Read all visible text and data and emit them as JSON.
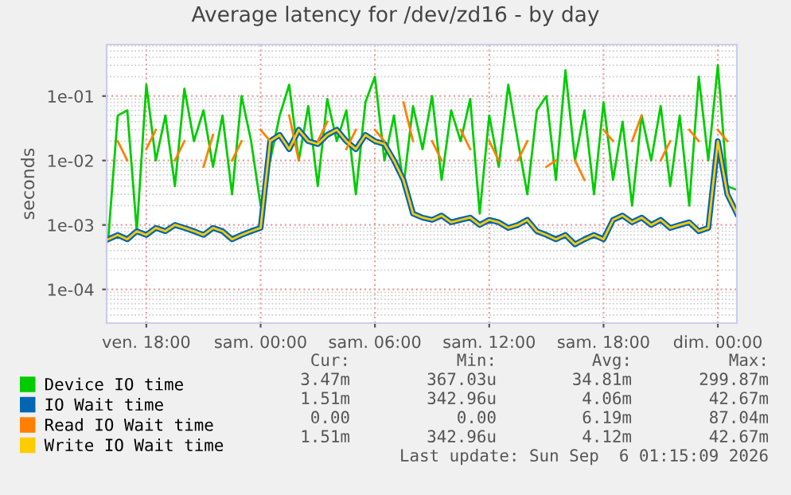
{
  "chart_data": {
    "type": "line",
    "title": "Average latency for /dev/zd16 - by day",
    "ylabel": "seconds",
    "x": [
      "2026-09-04T16:00",
      "2026-09-04T16:30",
      "2026-09-04T17:00",
      "2026-09-04T17:30",
      "2026-09-04T18:00",
      "2026-09-04T18:30",
      "2026-09-04T19:00",
      "2026-09-04T19:30",
      "2026-09-04T20:00",
      "2026-09-04T20:30",
      "2026-09-04T21:00",
      "2026-09-04T21:30",
      "2026-09-04T22:00",
      "2026-09-04T22:30",
      "2026-09-04T23:00",
      "2026-09-04T23:30",
      "2026-09-05T00:00",
      "2026-09-05T00:30",
      "2026-09-05T01:00",
      "2026-09-05T01:30",
      "2026-09-05T02:00",
      "2026-09-05T02:30",
      "2026-09-05T03:00",
      "2026-09-05T03:30",
      "2026-09-05T04:00",
      "2026-09-05T04:30",
      "2026-09-05T05:00",
      "2026-09-05T05:30",
      "2026-09-05T06:00",
      "2026-09-05T06:30",
      "2026-09-05T07:00",
      "2026-09-05T07:30",
      "2026-09-05T08:00",
      "2026-09-05T08:30",
      "2026-09-05T09:00",
      "2026-09-05T09:30",
      "2026-09-05T10:00",
      "2026-09-05T10:30",
      "2026-09-05T11:00",
      "2026-09-05T11:30",
      "2026-09-05T12:00",
      "2026-09-05T12:30",
      "2026-09-05T13:00",
      "2026-09-05T13:30",
      "2026-09-05T14:00",
      "2026-09-05T14:30",
      "2026-09-05T15:00",
      "2026-09-05T15:30",
      "2026-09-05T16:00",
      "2026-09-05T16:30",
      "2026-09-05T17:00",
      "2026-09-05T17:30",
      "2026-09-05T18:00",
      "2026-09-05T18:30",
      "2026-09-05T19:00",
      "2026-09-05T19:30",
      "2026-09-05T20:00",
      "2026-09-05T20:30",
      "2026-09-05T21:00",
      "2026-09-05T21:30",
      "2026-09-05T22:00",
      "2026-09-05T22:30",
      "2026-09-05T23:00",
      "2026-09-05T23:30",
      "2026-09-06T00:00",
      "2026-09-06T00:30",
      "2026-09-06T01:00"
    ],
    "series": [
      {
        "name": "Device IO time",
        "color": "#00cc00",
        "values": [
          0.0006,
          0.05,
          0.06,
          0.0008,
          0.15,
          0.01,
          0.05,
          0.004,
          0.13,
          0.02,
          0.06,
          0.008,
          0.05,
          0.003,
          0.1,
          0.02,
          0.002,
          0.01,
          0.05,
          0.15,
          0.01,
          0.07,
          0.004,
          0.09,
          0.02,
          0.06,
          0.003,
          0.08,
          0.2,
          0.01,
          0.05,
          0.004,
          0.07,
          0.015,
          0.1,
          0.005,
          0.06,
          0.02,
          0.09,
          0.0015,
          0.05,
          0.008,
          0.15,
          0.02,
          0.003,
          0.06,
          0.1,
          0.005,
          0.25,
          0.01,
          0.06,
          0.003,
          0.08,
          0.005,
          0.04,
          0.002,
          0.05,
          0.01,
          0.07,
          0.004,
          0.05,
          0.002,
          0.2,
          0.01,
          0.3,
          0.004,
          0.0035
        ]
      },
      {
        "name": "IO Wait time",
        "color": "#0066b3",
        "values": [
          0.0006,
          0.0007,
          0.0006,
          0.0008,
          0.0007,
          0.0009,
          0.0008,
          0.001,
          0.0009,
          0.0008,
          0.0007,
          0.0009,
          0.0008,
          0.0006,
          0.0007,
          0.0008,
          0.0009,
          0.02,
          0.025,
          0.015,
          0.03,
          0.02,
          0.018,
          0.025,
          0.03,
          0.02,
          0.015,
          0.025,
          0.02,
          0.018,
          0.01,
          0.005,
          0.0015,
          0.0013,
          0.0012,
          0.0014,
          0.0011,
          0.0012,
          0.0013,
          0.001,
          0.0012,
          0.0011,
          0.0009,
          0.001,
          0.0012,
          0.0008,
          0.0007,
          0.0006,
          0.0007,
          0.0005,
          0.0006,
          0.0007,
          0.0006,
          0.0012,
          0.0014,
          0.0011,
          0.0013,
          0.001,
          0.0012,
          0.0009,
          0.001,
          0.0011,
          0.0008,
          0.0009,
          0.02,
          0.003,
          0.0015
        ]
      },
      {
        "name": "Read IO Wait time",
        "color": "#ff8000",
        "values": [
          null,
          0.02,
          0.01,
          null,
          0.015,
          0.03,
          null,
          0.01,
          0.02,
          null,
          0.008,
          0.025,
          null,
          0.01,
          0.02,
          null,
          0.03,
          0.02,
          null,
          0.05,
          0.01,
          null,
          0.02,
          0.04,
          null,
          0.015,
          0.03,
          null,
          0.03,
          0.02,
          null,
          0.08,
          0.02,
          null,
          0.02,
          0.01,
          null,
          0.03,
          0.015,
          null,
          0.02,
          0.01,
          null,
          0.01,
          0.02,
          null,
          0.008,
          0.01,
          null,
          0.01,
          0.005,
          null,
          0.03,
          0.02,
          null,
          0.02,
          0.05,
          null,
          0.01,
          0.02,
          null,
          0.03,
          0.02,
          null,
          0.03,
          0.02,
          null
        ]
      },
      {
        "name": "Write IO Wait time",
        "color": "#ffcc00",
        "values": [
          0.0006,
          0.0007,
          0.0006,
          0.0008,
          0.0007,
          0.0009,
          0.0008,
          0.001,
          0.0009,
          0.0008,
          0.0007,
          0.0009,
          0.0008,
          0.0006,
          0.0007,
          0.0008,
          0.0009,
          0.02,
          0.025,
          0.015,
          0.03,
          0.02,
          0.018,
          0.025,
          0.03,
          0.02,
          0.015,
          0.025,
          0.02,
          0.018,
          0.01,
          0.005,
          0.0015,
          0.0013,
          0.0012,
          0.0014,
          0.0011,
          0.0012,
          0.0013,
          0.001,
          0.0012,
          0.0011,
          0.0009,
          0.001,
          0.0012,
          0.0008,
          0.0007,
          0.0006,
          0.0007,
          0.0005,
          0.0006,
          0.0007,
          0.0006,
          0.0012,
          0.0014,
          0.0011,
          0.0013,
          0.001,
          0.0012,
          0.0009,
          0.001,
          0.0011,
          0.0008,
          0.0009,
          0.02,
          0.003,
          0.0015
        ]
      }
    ],
    "log": "y",
    "xlim": [
      "2026-09-04T15:55",
      "2026-09-06T01:00"
    ],
    "ylim": [
      3e-05,
      0.63
    ],
    "xticks": [
      {
        "value": "2026-09-04T18:00",
        "label": "ven. 18:00"
      },
      {
        "value": "2026-09-05T00:00",
        "label": "sam. 00:00"
      },
      {
        "value": "2026-09-05T06:00",
        "label": "sam. 06:00"
      },
      {
        "value": "2026-09-05T12:00",
        "label": "sam. 12:00"
      },
      {
        "value": "2026-09-05T18:00",
        "label": "sam. 18:00"
      },
      {
        "value": "2026-09-06T00:00",
        "label": "dim. 00:00"
      }
    ],
    "yticks": [
      {
        "value": 0.0001,
        "label": "1e-04"
      },
      {
        "value": 0.001,
        "label": "1e-03"
      },
      {
        "value": 0.01,
        "label": "1e-02"
      },
      {
        "value": 0.1,
        "label": "1e-01"
      }
    ],
    "grid": true,
    "legend": "bottom",
    "line_style": "solid",
    "marker": "none",
    "annotations": [
      "Cur:",
      "Min:",
      "Avg:",
      "Max:",
      "3.47m",
      "367.03u",
      "34.81m",
      "299.87m",
      "1.51m",
      "342.96u",
      "4.06m",
      "42.67m",
      "0.00",
      "0.00",
      "6.19m",
      "87.04m",
      "1.51m",
      "342.96u",
      "4.12m",
      "42.67m",
      "Last update: Sun Sep  6 01:15:09 2026"
    ]
  }
}
